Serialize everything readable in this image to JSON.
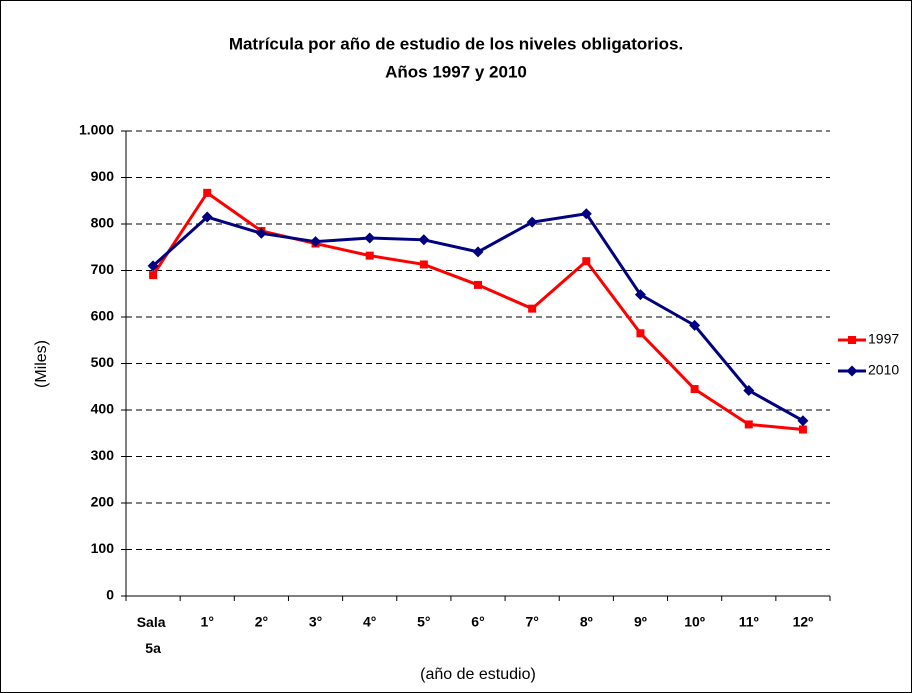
{
  "chart_data": {
    "type": "line",
    "title": "Matrícula por año de estudio de los niveles obligatorios.",
    "subtitle": "Años 1997 y 2010",
    "y_label": "(Miles)",
    "x_label": "(año de estudio)",
    "categories": [
      "Sala 5a",
      "1°",
      "2°",
      "3°",
      "4°",
      "5°",
      "6°",
      "7°",
      "8º",
      "9º",
      "10º",
      "11º",
      "12º"
    ],
    "series": [
      {
        "name": "1997",
        "color": "#ff0000",
        "marker": "square",
        "values": [
          690,
          867,
          785,
          758,
          732,
          713,
          669,
          618,
          720,
          565,
          445,
          369,
          358
        ]
      },
      {
        "name": "2010",
        "color": "#000080",
        "marker": "diamond",
        "values": [
          710,
          815,
          780,
          762,
          770,
          766,
          740,
          804,
          822,
          648,
          582,
          442,
          377
        ]
      }
    ],
    "ylim": [
      0,
      1000
    ],
    "yticks": [
      0,
      100,
      200,
      300,
      400,
      500,
      600,
      700,
      800,
      900,
      {
        "value": 1000,
        "label": "1.000"
      }
    ],
    "grid": true,
    "legend": "right"
  }
}
